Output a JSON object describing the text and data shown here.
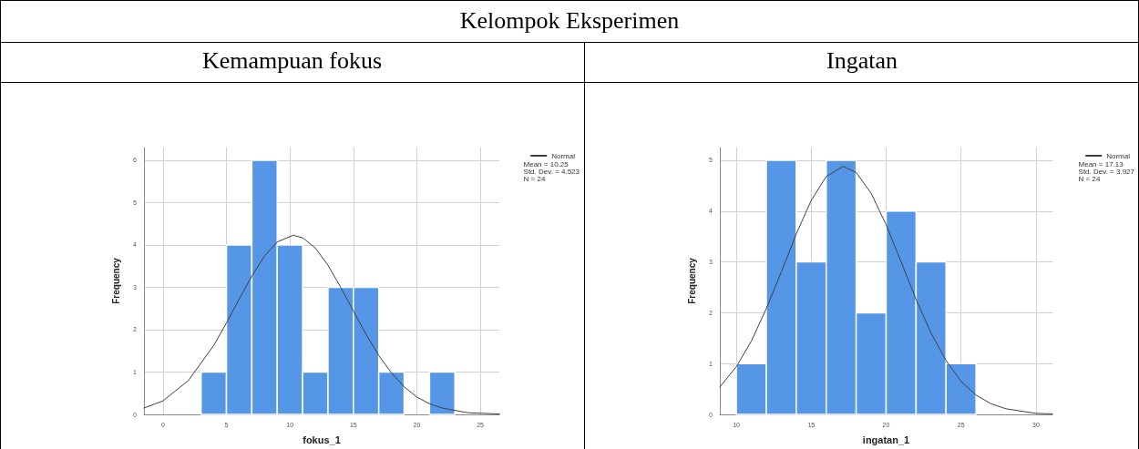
{
  "chart_data": [
    {
      "type": "histogram",
      "title": "Kemampuan fokus",
      "annotations": [
        "Kelompok Eksperimen",
        "Mean = 10.25\nStd. Dev. = 4.523\nN = 24"
      ],
      "xlabel": "fokus_1",
      "ylabel": "Frequency",
      "xlim": [
        -1.5,
        26.5
      ],
      "ylim": [
        0,
        6.3
      ],
      "xticks": [
        0,
        5,
        10,
        15,
        20,
        25
      ],
      "yticks": [
        0,
        1,
        2,
        3,
        4,
        5,
        6
      ],
      "grid": true,
      "legend": "top right",
      "marker": "none",
      "line_style": "solid",
      "series": [
        {
          "color": "#5596e6",
          "bins": [
            3,
            5,
            7,
            9,
            11,
            13,
            15,
            17,
            19,
            21,
            23
          ],
          "values": [
            1,
            4,
            6,
            4,
            1,
            3,
            3,
            1,
            0,
            1
          ]
        },
        {
          "type": "line",
          "name": "Normal",
          "color": "#404040",
          "x": [
            -1.5,
            0,
            2,
            4,
            5,
            6,
            7,
            8,
            9,
            10.25,
            11,
            12,
            13,
            14,
            15,
            16,
            17,
            18,
            19,
            20,
            21,
            22,
            24,
            26.5
          ],
          "values": [
            0.15,
            0.32,
            0.8,
            1.63,
            2.16,
            2.72,
            3.27,
            3.74,
            4.07,
            4.23,
            4.17,
            3.93,
            3.52,
            3.0,
            2.44,
            1.89,
            1.39,
            0.98,
            0.65,
            0.41,
            0.25,
            0.15,
            0.04,
            0.01
          ]
        }
      ]
    },
    {
      "type": "histogram",
      "title": "Ingatan",
      "annotations": [
        "Mean = 17.13\nStd. Dev. = 3.927\nN = 24"
      ],
      "xlabel": "ingatan_1",
      "ylabel": "Frequency",
      "xlim": [
        8.9,
        31.1
      ],
      "ylim": [
        0,
        5.25
      ],
      "xticks": [
        10,
        15,
        20,
        25,
        30
      ],
      "yticks": [
        0,
        1,
        2,
        3,
        4,
        5
      ],
      "grid": true,
      "legend": "top right",
      "marker": "none",
      "line_style": "solid",
      "series": [
        {
          "color": "#5596e6",
          "bins": [
            10,
            12,
            14,
            16,
            18,
            20,
            22,
            24,
            26
          ],
          "values": [
            1,
            5,
            3,
            5,
            2,
            4,
            3,
            1
          ]
        },
        {
          "type": "line",
          "name": "Normal",
          "color": "#404040",
          "x": [
            8.9,
            10,
            11,
            12,
            13,
            14,
            15,
            16,
            17.13,
            18,
            19,
            20,
            21,
            22,
            23,
            24,
            25,
            26,
            27,
            28,
            30,
            31.1
          ],
          "values": [
            0.54,
            0.94,
            1.44,
            2.08,
            2.8,
            3.55,
            4.21,
            4.68,
            4.88,
            4.76,
            4.35,
            3.73,
            3.0,
            2.26,
            1.6,
            1.06,
            0.65,
            0.38,
            0.21,
            0.11,
            0.02,
            0.01
          ]
        }
      ]
    }
  ]
}
